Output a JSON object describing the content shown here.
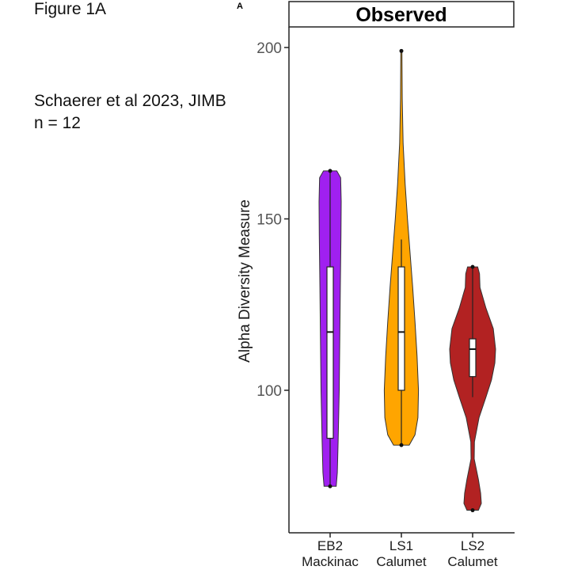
{
  "captions": {
    "figure": "Figure 1A",
    "citation": "Schaerer et al 2023, JIMB",
    "n": "n = 12"
  },
  "chart_data": {
    "type": "violin",
    "panel_label": "A",
    "title": "Observed",
    "xlabel": "",
    "ylabel": "Alpha Diversity Measure",
    "ylim": [
      58,
      208
    ],
    "yticks": [
      100,
      150,
      200
    ],
    "grid": false,
    "categories": [
      {
        "line1": "EB2",
        "line2": "Mackinac",
        "color": "#a020f0",
        "min": 72,
        "q1": 86,
        "median": 117,
        "q3": 136,
        "max": 164,
        "whisker_low": 72,
        "whisker_high": 164
      },
      {
        "line1": "LS1",
        "line2": "Calumet",
        "color": "#ffa500",
        "min": 84,
        "q1": 100,
        "median": 117,
        "q3": 136,
        "max": 199,
        "whisker_low": 84,
        "whisker_high": 144
      },
      {
        "line1": "LS2",
        "line2": "Calumet",
        "color": "#b22222",
        "min": 65,
        "q1": 104,
        "median": 112,
        "q3": 115,
        "max": 136,
        "whisker_low": 98,
        "whisker_high": 136
      }
    ]
  }
}
